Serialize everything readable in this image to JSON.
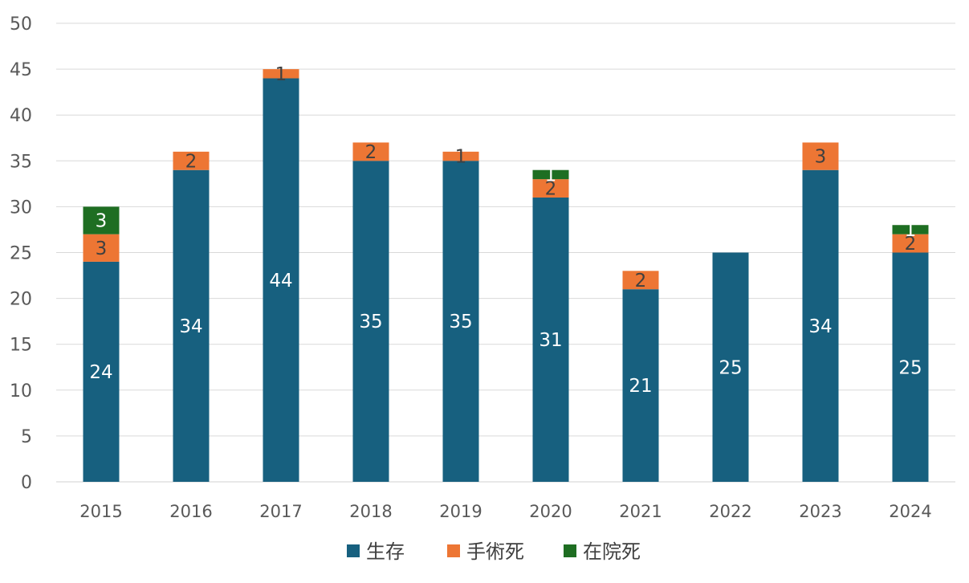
{
  "chart_data": {
    "type": "bar",
    "stacked": true,
    "categories": [
      "2015",
      "2016",
      "2017",
      "2018",
      "2019",
      "2020",
      "2021",
      "2022",
      "2023",
      "2024"
    ],
    "series": [
      {
        "name": "生存",
        "color": "#17607F",
        "label_color": "#ffffff",
        "values": [
          24,
          34,
          44,
          35,
          35,
          31,
          21,
          25,
          34,
          25
        ]
      },
      {
        "name": "手術死",
        "color": "#ED7634",
        "label_color": "#404040",
        "values": [
          3,
          2,
          1,
          2,
          1,
          2,
          2,
          0,
          3,
          2
        ]
      },
      {
        "name": "在院死",
        "color": "#1E6E22",
        "label_color": "#ffffff",
        "values": [
          3,
          0,
          0,
          0,
          0,
          1,
          0,
          0,
          0,
          1
        ]
      }
    ],
    "title": "",
    "xlabel": "",
    "ylabel": "",
    "ylim": [
      0,
      50
    ],
    "ytick_step": 5,
    "grid": true,
    "legend_position": "bottom"
  }
}
